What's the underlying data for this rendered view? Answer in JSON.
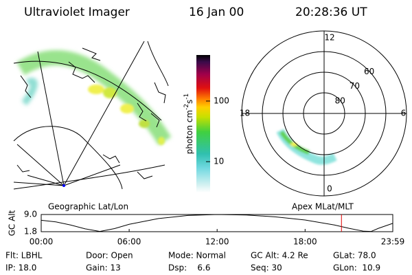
{
  "header": {
    "title": "Ultraviolet Imager",
    "date": "16 Jan 00",
    "time": "20:28:36 UT"
  },
  "left_panel": {
    "caption": "Geographic Lat/Lon"
  },
  "colorbar": {
    "label": {
      "base": "photon cm",
      "exp1": "-2",
      "unit2": "s",
      "exp2": "-1"
    },
    "scale": "log",
    "lim": [
      3.1,
      575
    ],
    "ticks": [
      10,
      100
    ]
  },
  "polar_panel": {
    "caption": "Apex MLat/MLT",
    "lat_min": 50,
    "lat_circles": [
      80,
      70,
      60
    ],
    "mlt_labels": [
      {
        "value": 12,
        "label": "12"
      },
      {
        "value": 18,
        "label": "18"
      },
      {
        "value": 6,
        "label": "6"
      },
      {
        "value": 0,
        "label": "0"
      }
    ]
  },
  "altitude_plot": {
    "ylabel": "GC Alt",
    "ylim": [
      1.8,
      9.0
    ],
    "yticks": [
      {
        "value": 9.0,
        "label": "9.0"
      },
      1.8
    ],
    "xlim": [
      0,
      23.98
    ],
    "xticks": [
      {
        "value": 0,
        "label": "00:00"
      },
      {
        "value": 6,
        "label": "06:00"
      },
      {
        "value": 12,
        "label": "12:00"
      },
      {
        "value": 18,
        "label": "18:00"
      },
      {
        "value": 23.98,
        "label": "23:59"
      }
    ],
    "x": [
      0,
      1,
      2,
      3,
      4,
      5,
      6,
      8,
      10,
      12,
      14,
      16,
      18,
      20,
      21,
      22,
      22.5,
      23,
      23.98
    ],
    "values": [
      6.6,
      5.9,
      4.6,
      3.0,
      1.9,
      3.1,
      4.9,
      7.3,
      8.6,
      9.0,
      8.8,
      8.0,
      6.7,
      4.6,
      3.2,
      2.0,
      1.9,
      3.2,
      5.3
    ],
    "current_time": 20.48,
    "color": "#000000",
    "marker_color": "#e00000"
  },
  "footer": {
    "rows": [
      [
        "Flt: LBHL",
        "Door: Open",
        "Mode: Normal",
        "GC Alt: 4.2 Re",
        "GLat: 78.0"
      ],
      [
        "IP: 18.0",
        "Gain: 13",
        "Dsp:    6.6",
        "Seq: 30",
        "GLon:  10.9"
      ]
    ]
  }
}
